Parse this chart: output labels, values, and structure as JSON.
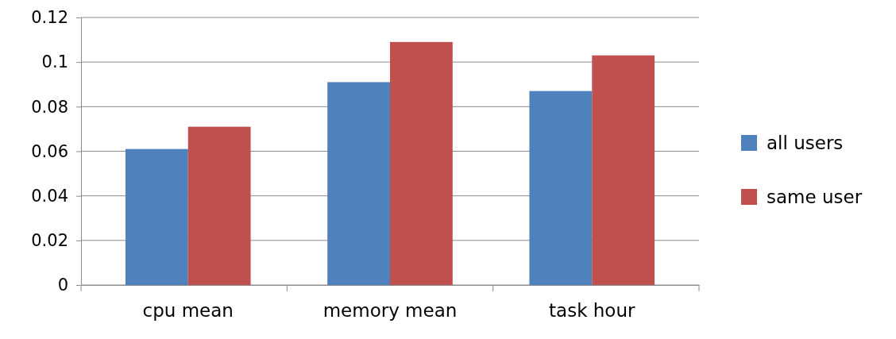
{
  "chart_data": {
    "type": "bar",
    "categories": [
      "cpu mean",
      "memory mean",
      "task hour"
    ],
    "series": [
      {
        "name": "all users",
        "color": "#4f81bd",
        "values": [
          0.061,
          0.091,
          0.087
        ]
      },
      {
        "name": "same user",
        "color": "#c0504d",
        "values": [
          0.071,
          0.109,
          0.103
        ]
      }
    ],
    "ylim": [
      0,
      0.12
    ],
    "yticks": [
      0,
      0.02,
      0.04,
      0.06,
      0.08,
      0.1,
      0.12
    ],
    "grid": "y",
    "legend": "right"
  }
}
